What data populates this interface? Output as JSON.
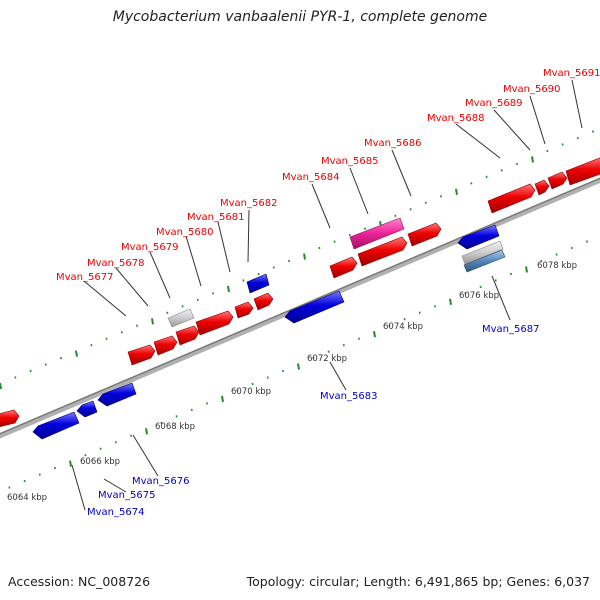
{
  "title": "Mycobacterium vanbaalenii PYR-1, complete genome",
  "accession": "Accession: NC_008726",
  "summary": "Topology: circular; Length: 6,491,865 bp; Genes: 6,037",
  "colors": {
    "forward": "#ee0000",
    "reverse": "#0000dd",
    "pseudo": "#cccccc",
    "rna_pink": "#ee2299",
    "rna_steel": "#5588bb",
    "tick": "#2a8a2a",
    "backbone": "#888888",
    "kbp_text": "#333333"
  },
  "scale": {
    "unit": "kbp",
    "labels": [
      "6064 kbp",
      "6066 kbp",
      "6068 kbp",
      "6070 kbp",
      "6072 kbp",
      "6074 kbp",
      "6076 kbp",
      "6078 kbp"
    ]
  },
  "forward_labels": [
    "Mvan_5677",
    "Mvan_5678",
    "Mvan_5679",
    "Mvan_5680",
    "Mvan_5681",
    "Mvan_5682",
    "Mvan_5684",
    "Mvan_5685",
    "Mvan_5686",
    "Mvan_5688",
    "Mvan_5689",
    "Mvan_5690",
    "Mvan_5691"
  ],
  "reverse_labels": [
    "Mvan_5674",
    "Mvan_5675",
    "Mvan_5676",
    "Mvan_5683",
    "Mvan_5687"
  ]
}
